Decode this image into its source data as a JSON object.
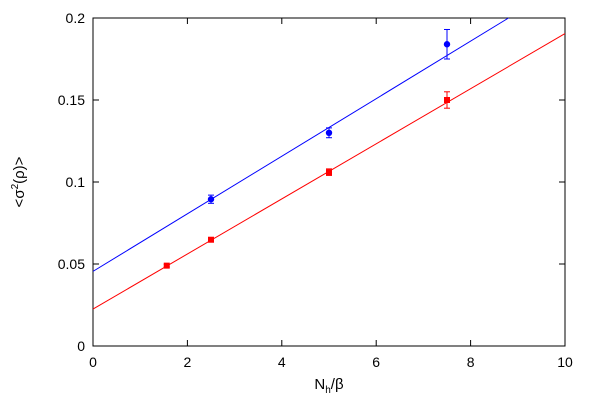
{
  "chart_data": {
    "type": "scatter",
    "title": "",
    "xlabel_main": "N",
    "xlabel_sub": "h",
    "xlabel_tail": "/β",
    "ylabel_pre": "<σ",
    "ylabel_sup": "2",
    "ylabel_post": "(ρ)>",
    "xlim": [
      0,
      10
    ],
    "ylim": [
      0,
      0.2
    ],
    "xticks": [
      0,
      2,
      4,
      6,
      8,
      10
    ],
    "yticks": [
      0,
      0.05,
      0.1,
      0.15,
      0.2
    ],
    "xtick_labels": [
      "0",
      "2",
      "4",
      "6",
      "8",
      "10"
    ],
    "ytick_labels": [
      "0",
      "0.05",
      "0.1",
      "0.15",
      "0.2"
    ],
    "grid": false,
    "legend": false,
    "series": [
      {
        "color": "#0000ff",
        "marker": "circle",
        "x": [
          2.5,
          5.0,
          7.5
        ],
        "y": [
          0.0895,
          0.13,
          0.184
        ],
        "err": [
          0.0025,
          0.003,
          0.009
        ],
        "fit": {
          "intercept": 0.0455,
          "slope": 0.01755
        }
      },
      {
        "color": "#ff0000",
        "marker": "square",
        "x": [
          1.5625,
          2.5,
          5.0,
          7.5
        ],
        "y": [
          0.049,
          0.0648,
          0.106,
          0.15
        ],
        "err": [
          0.0008,
          0.001,
          0.002,
          0.005
        ],
        "fit": {
          "intercept": 0.0225,
          "slope": 0.0168
        }
      }
    ]
  }
}
